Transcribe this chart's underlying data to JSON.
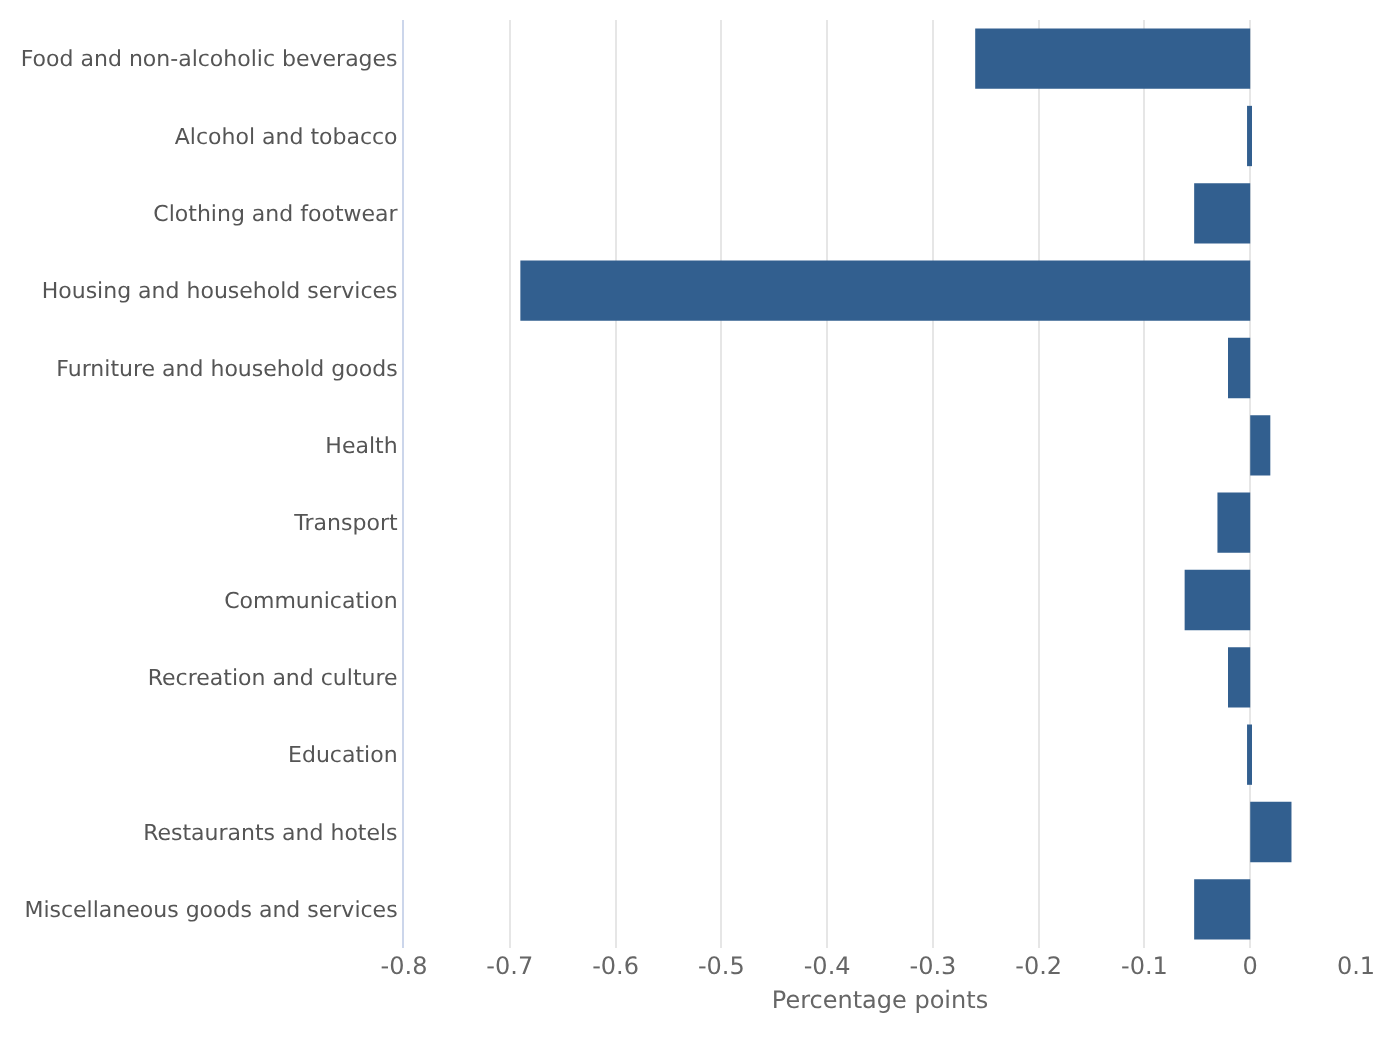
{
  "chart_data": {
    "type": "bar",
    "orientation": "horizontal",
    "xlabel": "Percentage points",
    "categories": [
      "Food and non-alcoholic beverages",
      "Alcohol and tobacco",
      "Clothing and footwear",
      "Housing and household services",
      "Furniture and household goods",
      "Health",
      "Transport",
      "Communication",
      "Recreation and culture",
      "Education",
      "Restaurants and hotels",
      "Miscellaneous goods and services"
    ],
    "values": [
      -0.26,
      -0.003,
      -0.053,
      -0.69,
      -0.021,
      0.019,
      -0.031,
      -0.062,
      -0.021,
      -0.003,
      0.039,
      -0.053
    ],
    "color": "#325f8f",
    "xlim": [
      -0.8,
      0.1
    ],
    "xticks": [
      -0.8,
      -0.7,
      -0.6,
      -0.5,
      -0.4,
      -0.3,
      -0.2,
      -0.1,
      0,
      0.1
    ],
    "grid": "x"
  }
}
